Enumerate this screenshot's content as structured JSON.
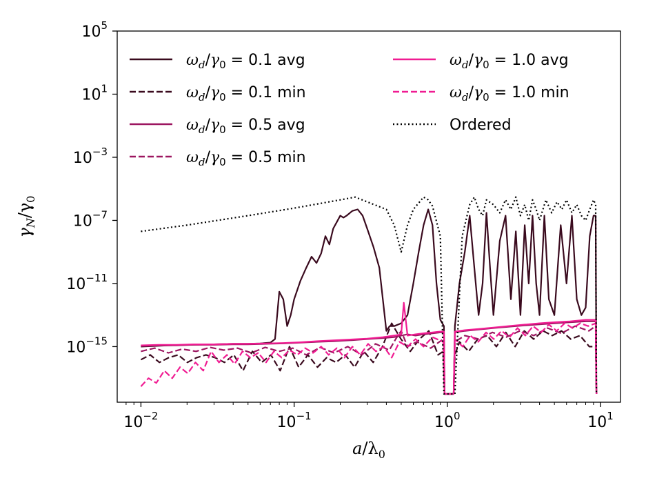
{
  "chart_data": {
    "type": "line",
    "xscale": "log",
    "yscale": "log",
    "xlim": [
      0.007,
      13.5
    ],
    "ylim": [
      3e-19,
      100000.0
    ],
    "xlabel_main": "a",
    "xlabel_sub": "0",
    "ylabel_main": "γ",
    "ylabel_sub_n": "N",
    "ylabel_sub_0": "0",
    "x_ticks": [
      {
        "value": 0.01,
        "base": "10",
        "exp": "−2"
      },
      {
        "value": 0.1,
        "base": "10",
        "exp": "−1"
      },
      {
        "value": 1,
        "base": "10",
        "exp": "0"
      },
      {
        "value": 10,
        "base": "10",
        "exp": "1"
      }
    ],
    "y_ticks": [
      {
        "value": 100000.0,
        "base": "10",
        "exp": "5"
      },
      {
        "value": 10,
        "base": "10",
        "exp": "1"
      },
      {
        "value": 0.001,
        "base": "10",
        "exp": "−3"
      },
      {
        "value": 1e-07,
        "base": "10",
        "exp": "−7"
      },
      {
        "value": 1e-11,
        "base": "10",
        "exp": "−11"
      },
      {
        "value": 1e-15,
        "base": "10",
        "exp": "−15"
      }
    ],
    "legend_location": "top",
    "series": [
      {
        "name": "ωd/γ0 = 0.1 avg",
        "ratio": "0.1",
        "kind": "avg",
        "color": "#3a0a1e",
        "dash": "solid",
        "x": [
          0.01,
          0.015,
          0.02,
          0.03,
          0.04,
          0.05,
          0.06,
          0.07,
          0.075,
          0.08,
          0.085,
          0.09,
          0.095,
          0.1,
          0.11,
          0.12,
          0.13,
          0.14,
          0.15,
          0.16,
          0.17,
          0.18,
          0.19,
          0.2,
          0.21,
          0.22,
          0.24,
          0.26,
          0.28,
          0.3,
          0.33,
          0.36,
          0.4,
          0.42,
          0.45,
          0.5,
          0.55,
          0.6,
          0.65,
          0.7,
          0.75,
          0.8,
          0.85,
          0.9,
          0.95,
          0.96,
          1.1,
          1.12,
          1.2,
          1.3,
          1.4,
          1.5,
          1.6,
          1.7,
          1.8,
          1.9,
          2.0,
          2.2,
          2.4,
          2.6,
          2.8,
          3.0,
          3.2,
          3.4,
          3.6,
          3.8,
          4.0,
          4.3,
          4.6,
          5.0,
          5.5,
          6.0,
          6.5,
          7.0,
          7.5,
          8.0,
          8.5,
          9.0,
          9.3,
          9.4
        ],
        "y": [
          1e-15,
          1.2e-15,
          1.3e-15,
          1.4e-15,
          1.5e-15,
          1.5e-15,
          1.6e-15,
          1.8e-15,
          3e-15,
          3e-12,
          1e-12,
          2e-14,
          1e-13,
          1e-12,
          1.5e-11,
          1e-10,
          5e-10,
          2e-10,
          8e-10,
          1e-08,
          3e-09,
          3e-08,
          8e-08,
          2e-07,
          1.5e-07,
          2e-07,
          4e-07,
          5e-07,
          2e-07,
          3e-08,
          2e-09,
          1e-10,
          1e-14,
          2e-14,
          2e-14,
          3e-14,
          1e-13,
          1e-11,
          1e-09,
          5e-08,
          5e-07,
          5e-08,
          1e-11,
          5e-14,
          2e-14,
          1e-18,
          1e-18,
          2e-14,
          1e-11,
          1e-09,
          2e-07,
          1e-10,
          1e-13,
          1e-11,
          3e-07,
          1e-10,
          1e-13,
          5e-09,
          2e-07,
          1e-12,
          2e-08,
          1e-13,
          5e-08,
          1e-11,
          2e-07,
          1e-11,
          1e-13,
          2e-07,
          1e-12,
          1e-13,
          5e-08,
          1e-11,
          2e-07,
          1e-12,
          1e-13,
          3e-13,
          1e-08,
          2e-07,
          2e-07,
          1e-18
        ]
      },
      {
        "name": "ωd/γ0 = 0.1 min",
        "ratio": "0.1",
        "kind": "min",
        "color": "#3a0a1e",
        "dash": "dashed",
        "x": [
          0.01,
          0.0115,
          0.0132,
          0.0152,
          0.0175,
          0.0201,
          0.0231,
          0.0266,
          0.0305,
          0.0351,
          0.0404,
          0.0464,
          0.0534,
          0.0614,
          0.0706,
          0.0811,
          0.0933,
          0.107,
          0.123,
          0.142,
          0.163,
          0.188,
          0.216,
          0.248,
          0.285,
          0.328,
          0.377,
          0.433,
          0.498,
          0.573,
          0.658,
          0.757,
          0.87,
          0.94,
          0.96,
          1.1,
          1.12,
          1.2,
          1.38,
          1.58,
          1.82,
          2.09,
          2.41,
          2.77,
          3.18,
          3.66,
          4.21,
          4.84,
          5.56,
          6.39,
          7.35,
          8.45,
          9.3,
          9.4
        ],
        "y": [
          1.5e-16,
          3e-16,
          1e-16,
          2e-16,
          3e-16,
          1e-16,
          2e-16,
          3e-16,
          2e-16,
          1e-16,
          3e-16,
          3e-17,
          5e-16,
          1e-16,
          3e-16,
          3e-17,
          1e-15,
          5e-17,
          3e-16,
          5e-17,
          2e-16,
          1e-16,
          3e-16,
          5e-17,
          5e-16,
          1e-16,
          1e-15,
          3e-14,
          3e-15,
          5e-16,
          3e-15,
          1e-14,
          3e-16,
          5e-16,
          1e-18,
          1e-18,
          3e-16,
          2e-15,
          5e-16,
          3e-15,
          5e-15,
          1e-15,
          8e-15,
          1e-15,
          1e-14,
          3e-15,
          1e-14,
          5e-15,
          1e-14,
          3e-15,
          5e-15,
          1e-15,
          1e-15,
          1e-18
        ]
      },
      {
        "name": "ωd/γ0 = 0.5 avg",
        "ratio": "0.5",
        "kind": "avg",
        "color": "#9c1660",
        "dash": "solid",
        "x": [
          0.01,
          0.013,
          0.017,
          0.022,
          0.03,
          0.04,
          0.05,
          0.065,
          0.085,
          0.11,
          0.14,
          0.18,
          0.23,
          0.3,
          0.38,
          0.45,
          0.5,
          0.55,
          0.62,
          0.7,
          0.8,
          0.9,
          0.95,
          0.96,
          1.1,
          1.12,
          1.3,
          1.6,
          2.0,
          2.5,
          3.2,
          4.0,
          5.0,
          6.3,
          8.0,
          9.3,
          9.4
        ],
        "y": [
          1.1e-15,
          1.2e-15,
          1.2e-15,
          1.3e-15,
          1.3e-15,
          1.4e-15,
          1.4e-15,
          1.5e-15,
          1.6e-15,
          1.8e-15,
          2e-15,
          2.2e-15,
          2.5e-15,
          3e-15,
          3.5e-15,
          4e-15,
          5e-15,
          6e-15,
          5e-15,
          6e-15,
          7e-15,
          8e-15,
          8e-15,
          1e-18,
          1e-18,
          8e-15,
          1e-14,
          1.2e-14,
          1.5e-14,
          1.8e-14,
          2.2e-14,
          2.6e-14,
          3e-14,
          3.5e-14,
          4e-14,
          4e-14,
          1e-18
        ]
      },
      {
        "name": "ωd/γ0 = 0.5 min",
        "ratio": "0.5",
        "kind": "min",
        "color": "#9c1660",
        "dash": "dashed",
        "x": [
          0.01,
          0.0123,
          0.0151,
          0.0186,
          0.0229,
          0.0282,
          0.0347,
          0.0427,
          0.0526,
          0.0647,
          0.0796,
          0.098,
          0.12,
          0.148,
          0.182,
          0.224,
          0.276,
          0.34,
          0.418,
          0.46,
          0.5,
          0.55,
          0.633,
          0.779,
          0.94,
          0.96,
          1.1,
          1.12,
          1.3,
          1.6,
          1.97,
          2.42,
          2.98,
          3.67,
          4.51,
          5.55,
          6.83,
          8.4,
          9.3,
          9.4
        ],
        "y": [
          5e-16,
          8e-16,
          4e-16,
          7e-16,
          5e-16,
          9e-16,
          6e-16,
          8e-16,
          4e-16,
          9e-16,
          5e-16,
          8e-16,
          3e-16,
          9e-16,
          4e-16,
          1e-15,
          3e-16,
          1.5e-15,
          6e-16,
          3e-15,
          1e-14,
          1e-15,
          2e-15,
          8e-16,
          3e-15,
          1e-18,
          1e-18,
          2e-15,
          5e-15,
          3e-15,
          8e-15,
          4e-15,
          1e-14,
          5e-15,
          1.5e-14,
          7e-15,
          2e-14,
          1e-14,
          2e-14,
          1e-18
        ]
      },
      {
        "name": "ωd/γ0 = 1.0 avg",
        "ratio": "1.0",
        "kind": "avg",
        "color": "#f01c92",
        "dash": "solid",
        "x": [
          0.01,
          0.013,
          0.017,
          0.022,
          0.03,
          0.04,
          0.05,
          0.065,
          0.085,
          0.11,
          0.14,
          0.18,
          0.23,
          0.3,
          0.38,
          0.45,
          0.5,
          0.52,
          0.55,
          0.62,
          0.7,
          0.8,
          0.9,
          0.95,
          0.96,
          1.1,
          1.12,
          1.3,
          1.6,
          2.0,
          2.5,
          3.2,
          4.0,
          5.0,
          6.3,
          8.0,
          9.3,
          9.4
        ],
        "y": [
          1.2e-15,
          1.3e-15,
          1.3e-15,
          1.4e-15,
          1.4e-15,
          1.5e-15,
          1.5e-15,
          1.6e-15,
          1.7e-15,
          1.9e-15,
          2.2e-15,
          2.5e-15,
          2.8e-15,
          3.2e-15,
          4e-15,
          5e-15,
          6e-15,
          6e-13,
          5e-15,
          6e-15,
          7e-15,
          8e-15,
          9e-15,
          9e-15,
          1e-18,
          1e-18,
          9e-15,
          1.1e-14,
          1.3e-14,
          1.6e-14,
          2e-14,
          2.5e-14,
          3e-14,
          3.5e-14,
          4e-14,
          5e-14,
          5e-14,
          1e-18
        ]
      },
      {
        "name": "ωd/γ0 = 1.0 min",
        "ratio": "1.0",
        "kind": "min",
        "color": "#f01c92",
        "dash": "dashed",
        "x": [
          0.01,
          0.0112,
          0.0126,
          0.0142,
          0.016,
          0.018,
          0.0202,
          0.0227,
          0.0255,
          0.0287,
          0.0323,
          0.0364,
          0.0409,
          0.046,
          0.0518,
          0.0583,
          0.0656,
          0.0738,
          0.083,
          0.0934,
          0.105,
          0.118,
          0.133,
          0.15,
          0.168,
          0.19,
          0.213,
          0.24,
          0.27,
          0.304,
          0.342,
          0.385,
          0.433,
          0.487,
          0.55,
          0.62,
          0.7,
          0.8,
          0.94,
          0.96,
          1.1,
          1.12,
          1.26,
          1.41,
          1.59,
          1.79,
          2.01,
          2.26,
          2.55,
          2.87,
          3.23,
          3.63,
          4.09,
          4.6,
          5.18,
          5.83,
          6.56,
          7.38,
          8.3,
          9.3,
          9.4
        ],
        "y": [
          3e-18,
          1e-17,
          5e-18,
          3e-17,
          1e-17,
          5e-17,
          2e-17,
          1e-16,
          3e-17,
          5e-16,
          1e-16,
          3e-16,
          8e-17,
          5e-16,
          2e-16,
          4e-16,
          1e-16,
          5e-16,
          2e-16,
          6e-16,
          3e-16,
          8e-16,
          4e-16,
          1e-15,
          3e-16,
          8e-16,
          2e-16,
          1e-15,
          3e-16,
          1.5e-15,
          5e-16,
          1e-15,
          2e-16,
          2e-15,
          1e-15,
          3e-15,
          1e-15,
          4e-15,
          2e-15,
          1e-18,
          1e-18,
          3e-15,
          1e-15,
          5e-15,
          2e-15,
          8e-15,
          3e-15,
          1e-14,
          4e-15,
          1.5e-14,
          5e-15,
          2e-14,
          8e-15,
          2.5e-14,
          1e-14,
          3e-14,
          1.5e-14,
          3e-14,
          2e-14,
          3e-14,
          1e-18
        ]
      },
      {
        "name": "Ordered",
        "ratio": "",
        "kind": "ordered",
        "color": "#000000",
        "dash": "dotted",
        "x": [
          0.01,
          0.02,
          0.05,
          0.1,
          0.2,
          0.25,
          0.3,
          0.4,
          0.45,
          0.5,
          0.55,
          0.6,
          0.7,
          0.75,
          0.8,
          0.9,
          0.95,
          1.12,
          1.25,
          1.4,
          1.5,
          1.6,
          1.7,
          1.8,
          2.0,
          2.2,
          2.4,
          2.6,
          2.8,
          3.0,
          3.2,
          3.4,
          3.6,
          3.8,
          4.0,
          4.4,
          4.8,
          5.2,
          5.6,
          6.0,
          6.5,
          7.0,
          7.5,
          8.0,
          8.5,
          9.0,
          9.3,
          9.4
        ],
        "y": [
          2e-08,
          5e-08,
          2e-07,
          6e-07,
          2e-06,
          3e-06,
          1.5e-06,
          5e-07,
          5e-08,
          1e-09,
          5e-08,
          5e-07,
          3e-06,
          2e-06,
          8e-07,
          1e-08,
          1e-18,
          1e-18,
          1e-08,
          1e-06,
          3e-06,
          5e-07,
          2e-07,
          2e-06,
          1e-06,
          3e-07,
          2e-06,
          5e-07,
          3e-06,
          2e-07,
          1e-06,
          1e-07,
          2e-06,
          5e-07,
          1e-07,
          2e-06,
          3e-07,
          1.5e-06,
          5e-07,
          2e-06,
          3e-07,
          1e-06,
          2e-07,
          1e-07,
          5e-07,
          2e-06,
          1e-06,
          1e-18
        ]
      }
    ]
  }
}
